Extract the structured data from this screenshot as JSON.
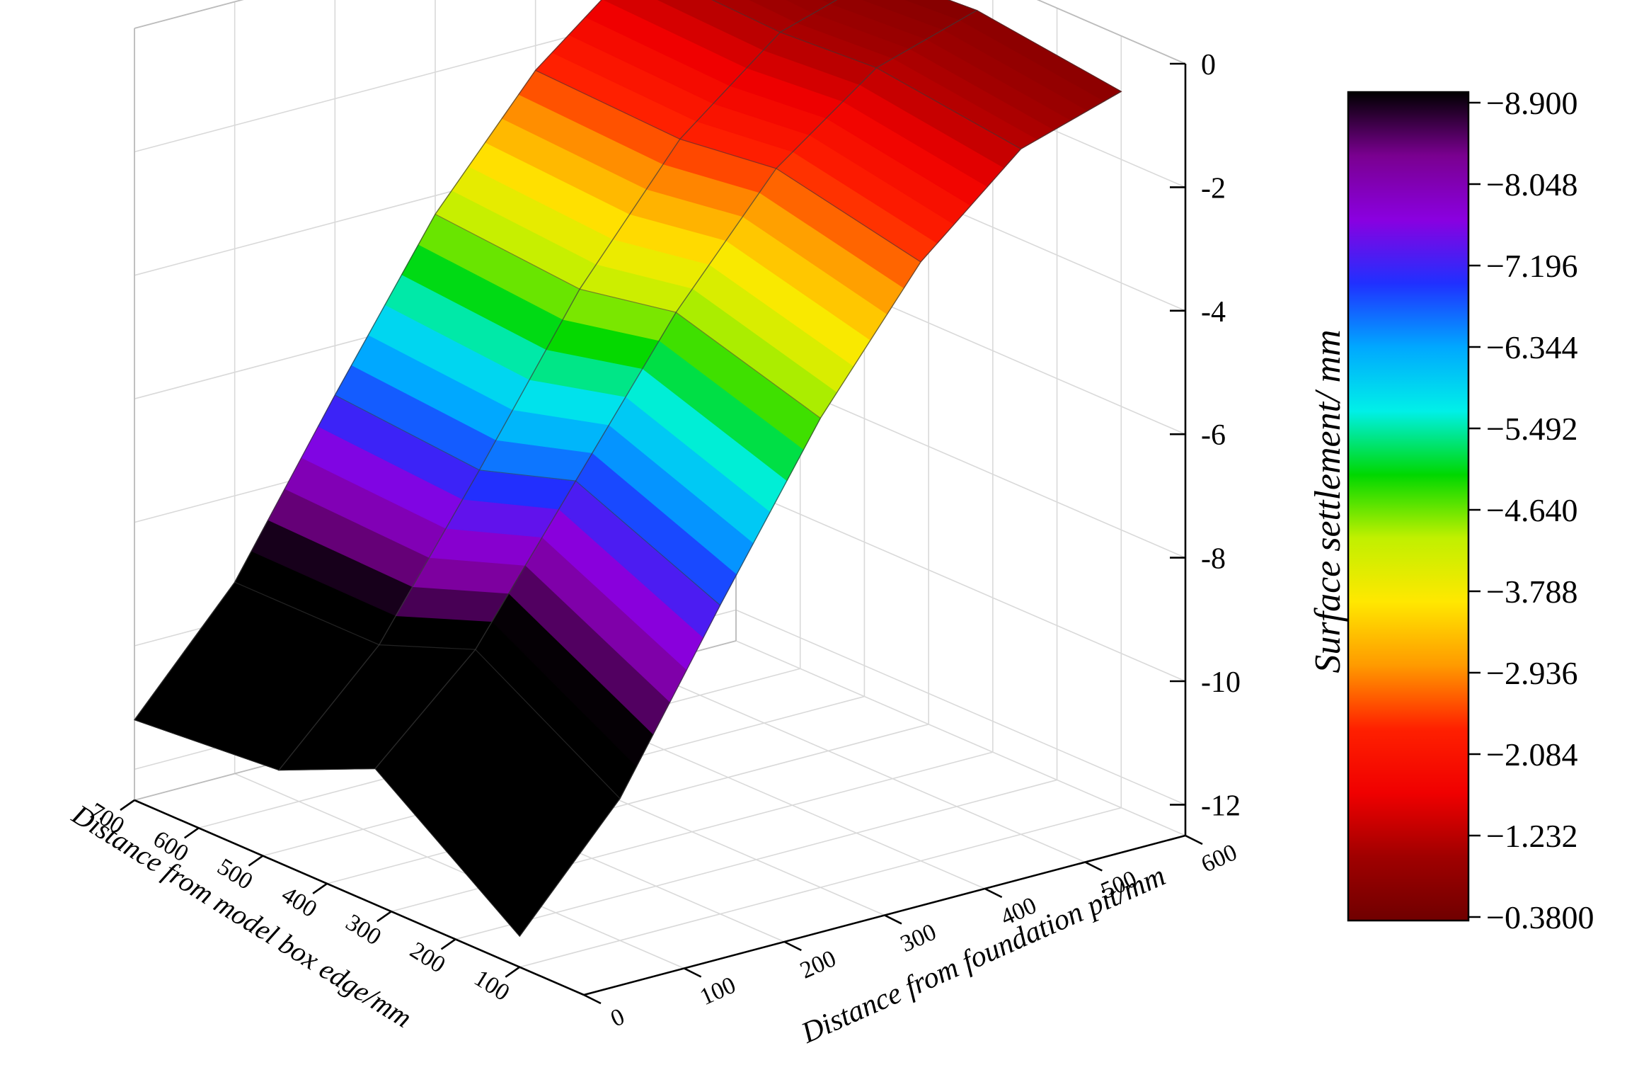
{
  "chart_data": {
    "type": "surface",
    "title": "",
    "zlabel": "Surface settlement/ mm",
    "xlabel": "Distance from foundation pit/mm",
    "ylabel": "Distance from model box edge/mm",
    "x_ticks": [
      "0",
      "100",
      "200",
      "300",
      "400",
      "500",
      "600"
    ],
    "y_ticks": [
      "100",
      "200",
      "300",
      "400",
      "500",
      "600",
      "700"
    ],
    "z_ticks": [
      "0",
      "-2",
      "-4",
      "-6",
      "-8",
      "-10",
      "-12"
    ],
    "xlim": [
      0,
      600
    ],
    "ylim": [
      0,
      700
    ],
    "zlim": [
      -12.5,
      0
    ],
    "grid": true,
    "legend_position": "right",
    "colorbar": {
      "labels": [
        "−8.900",
        "−8.048",
        "−7.196",
        "−6.344",
        "−5.492",
        "−4.640",
        "−3.788",
        "−2.936",
        "−2.084",
        "−1.232",
        "−0.3800"
      ],
      "min": -8.9,
      "max": -0.38,
      "colors": [
        "#000000",
        "#7a0090",
        "#8a00e0",
        "#2030ff",
        "#00a8ff",
        "#00f0e8",
        "#00d800",
        "#c0f000",
        "#ffe800",
        "#ff9a00",
        "#ff2000",
        "#f00000",
        "#a00000",
        "#700000"
      ]
    },
    "x": [
      0,
      100,
      200,
      300,
      400,
      500,
      600
    ],
    "series": [
      {
        "y": 100,
        "z": [
          -12.0,
          -10.2,
          -7.5,
          -4.9,
          -2.8,
          -1.4,
          -0.9
        ]
      },
      {
        "y": 325,
        "z": [
          -10.3,
          -8.8,
          -6.5,
          -4.2,
          -2.3,
          -1.1,
          -0.6
        ]
      },
      {
        "y": 475,
        "z": [
          -11.0,
          -9.4,
          -7.0,
          -4.5,
          -2.5,
          -1.2,
          -0.7
        ]
      },
      {
        "y": 700,
        "z": [
          -11.2,
          -9.4,
          -6.8,
          -4.3,
          -2.4,
          -1.1,
          -0.5
        ]
      }
    ]
  }
}
